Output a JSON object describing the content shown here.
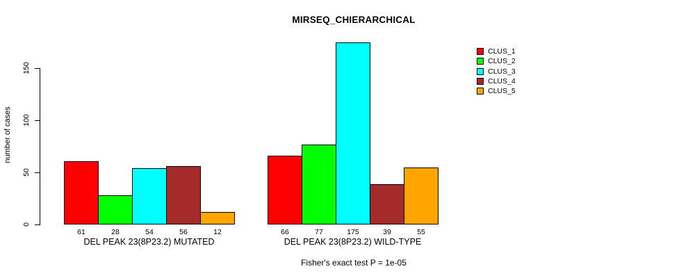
{
  "title": "MIRSEQ_CHIERARCHICAL",
  "footer": "Fisher's exact test P = 1e-05",
  "chart_data": {
    "type": "bar",
    "title": "MIRSEQ_CHIERARCHICAL",
    "xlabel": "",
    "ylabel": "number of cases",
    "ylim": [
      0,
      175
    ],
    "yticks": [
      "0",
      "50",
      "100",
      "150"
    ],
    "grid": false,
    "legend_position": "right",
    "bar_value_labels": true,
    "categories": [
      "DEL PEAK 23(8P23.2) MUTATED",
      "DEL PEAK 23(8P23.2) WILD-TYPE"
    ],
    "series": [
      {
        "name": "CLUS_1",
        "color": "#FF0000",
        "values": [
          61,
          66
        ]
      },
      {
        "name": "CLUS_2",
        "color": "#00FF00",
        "values": [
          28,
          77
        ]
      },
      {
        "name": "CLUS_3",
        "color": "#00FFFF",
        "values": [
          54,
          175
        ]
      },
      {
        "name": "CLUS_4",
        "color": "#A52A2A",
        "values": [
          56,
          39
        ]
      },
      {
        "name": "CLUS_5",
        "color": "#FFA500",
        "values": [
          12,
          55
        ]
      }
    ],
    "annotation": "Fisher's exact test P = 1e-05"
  }
}
